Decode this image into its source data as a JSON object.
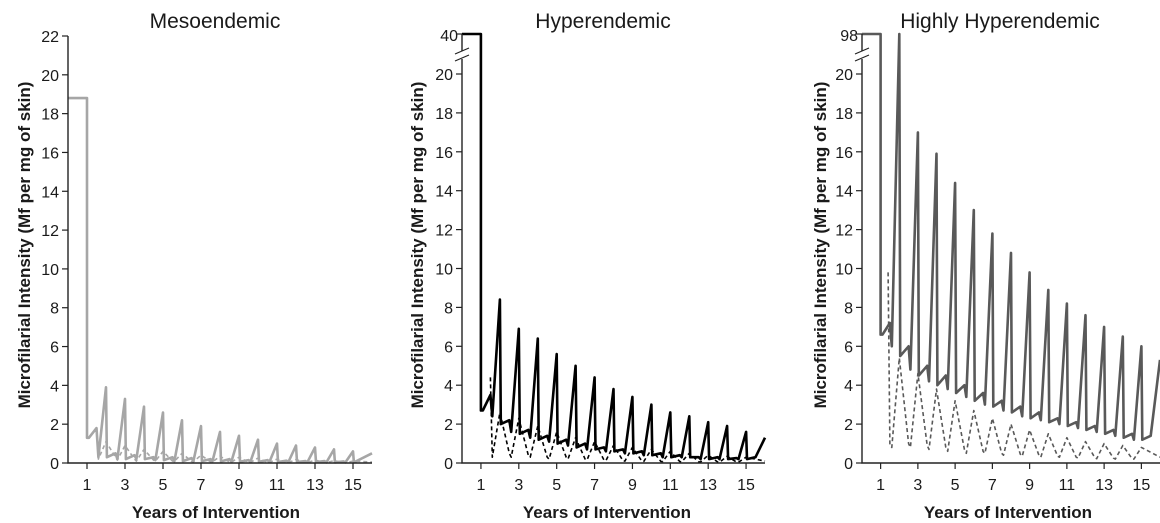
{
  "chart_data": [
    {
      "type": "line",
      "title": "Mesoendemic",
      "xlabel": "Years of Intervention",
      "ylabel": "Microfilarial Intensity (Mf per mg of skin)",
      "xlim": [
        0,
        16
      ],
      "ylim": [
        0,
        22
      ],
      "x_ticks": [
        1,
        3,
        5,
        7,
        9,
        11,
        13,
        15
      ],
      "y_ticks": [
        0,
        2,
        4,
        6,
        8,
        10,
        12,
        14,
        16,
        18,
        20,
        22
      ],
      "axis_break": false,
      "grid": false,
      "legend": "none",
      "pre_intervention_level": 18.8,
      "color": "#a6a6a6",
      "series": [
        {
          "style": "solid",
          "x": [
            0,
            1,
            1,
            1.1,
            1.5,
            1.6,
            2,
            2.05,
            2.5,
            2.6,
            3,
            3.05,
            3.5,
            3.6,
            4,
            4.05,
            4.5,
            4.6,
            5,
            5.05,
            5.5,
            5.6,
            6,
            6.05,
            6.5,
            6.6,
            7,
            7.05,
            7.5,
            7.6,
            8,
            8.05,
            8.5,
            8.6,
            9,
            9.05,
            9.5,
            9.6,
            10,
            10.05,
            10.5,
            10.6,
            11,
            11.05,
            11.5,
            11.6,
            12,
            12.05,
            12.5,
            12.6,
            13,
            13.05,
            13.5,
            13.6,
            14,
            14.05,
            14.5,
            14.6,
            15,
            15.05,
            16
          ],
          "y": [
            18.8,
            18.8,
            1.3,
            1.3,
            1.8,
            0.3,
            3.9,
            0.3,
            0.5,
            0.2,
            3.3,
            0.2,
            0.4,
            0.2,
            2.9,
            0.2,
            0.3,
            0.15,
            2.6,
            0.15,
            0.3,
            0.1,
            2.2,
            0.1,
            0.25,
            0.1,
            1.9,
            0.1,
            0.2,
            0.08,
            1.6,
            0.08,
            0.2,
            0.07,
            1.4,
            0.07,
            0.15,
            0.06,
            1.2,
            0.06,
            0.15,
            0.05,
            1.0,
            0.05,
            0.12,
            0.05,
            0.9,
            0.05,
            0.1,
            0.04,
            0.8,
            0.04,
            0.1,
            0.03,
            0.7,
            0.03,
            0.08,
            0.03,
            0.6,
            0.03,
            0.5
          ]
        },
        {
          "style": "dashed",
          "x": [
            1.5,
            1.6,
            2,
            2.5,
            2.6,
            3,
            3.5,
            3.6,
            4,
            4.5,
            4.6,
            5,
            5.5,
            5.6,
            6,
            6.5,
            6.6,
            7,
            7.5,
            7.6,
            8,
            8.5,
            8.6,
            9,
            9.5,
            9.6,
            10,
            10.5,
            10.6,
            11,
            11.5,
            11.6,
            12,
            12.5,
            12.6,
            13,
            13.5,
            13.6,
            14,
            14.5,
            14.6,
            15,
            16
          ],
          "y": [
            1.8,
            0.2,
            1.1,
            0.3,
            0.15,
            0.9,
            0.2,
            0.1,
            0.7,
            0.15,
            0.1,
            0.6,
            0.1,
            0.08,
            0.5,
            0.08,
            0.06,
            0.4,
            0.06,
            0.05,
            0.35,
            0.05,
            0.04,
            0.3,
            0.04,
            0.03,
            0.25,
            0.03,
            0.03,
            0.2,
            0.03,
            0.02,
            0.18,
            0.02,
            0.02,
            0.15,
            0.02,
            0.02,
            0.12,
            0.02,
            0.01,
            0.1,
            0.05
          ]
        }
      ]
    },
    {
      "type": "line",
      "title": "Hyperendemic",
      "xlabel": "Years of Intervention",
      "ylabel": "Microfilarial Intensity (Mf per mg of skin)",
      "xlim": [
        0,
        16
      ],
      "ylim": [
        0,
        20
      ],
      "x_ticks": [
        1,
        3,
        5,
        7,
        9,
        11,
        13,
        15
      ],
      "y_ticks": [
        0,
        2,
        4,
        6,
        8,
        10,
        12,
        14,
        16,
        18,
        20
      ],
      "axis_break": true,
      "break_top_label": "40",
      "grid": false,
      "legend": "none",
      "pre_intervention_level": 40,
      "color": "#000000",
      "series": [
        {
          "style": "solid",
          "x": [
            0,
            1,
            1,
            1.1,
            1.5,
            1.6,
            2,
            2.05,
            2.5,
            2.6,
            3,
            3.05,
            3.5,
            3.6,
            4,
            4.05,
            4.5,
            4.6,
            5,
            5.05,
            5.5,
            5.6,
            6,
            6.05,
            6.5,
            6.6,
            7,
            7.05,
            7.5,
            7.6,
            8,
            8.05,
            8.5,
            8.6,
            9,
            9.05,
            9.5,
            9.6,
            10,
            10.05,
            10.5,
            10.6,
            11,
            11.05,
            11.5,
            11.6,
            12,
            12.05,
            12.5,
            12.6,
            13,
            13.05,
            13.5,
            13.6,
            14,
            14.05,
            14.5,
            14.6,
            15,
            15.05,
            15.5,
            16
          ],
          "y": [
            40,
            40,
            2.7,
            2.7,
            3.5,
            2.4,
            8.4,
            2.0,
            2.2,
            1.6,
            6.9,
            1.5,
            1.7,
            1.3,
            6.4,
            1.2,
            1.4,
            1.1,
            5.6,
            1.0,
            1.2,
            0.9,
            5.0,
            0.8,
            1.0,
            0.7,
            4.4,
            0.7,
            0.8,
            0.6,
            3.8,
            0.6,
            0.7,
            0.5,
            3.4,
            0.5,
            0.6,
            0.4,
            3.0,
            0.4,
            0.5,
            0.3,
            2.6,
            0.3,
            0.4,
            0.3,
            2.4,
            0.3,
            0.3,
            0.2,
            2.1,
            0.2,
            0.3,
            0.2,
            1.9,
            0.2,
            0.25,
            0.2,
            1.6,
            0.2,
            0.3,
            1.3
          ]
        },
        {
          "style": "dashed",
          "x": [
            1.5,
            1.6,
            2,
            2.5,
            2.6,
            3,
            3.5,
            3.6,
            4,
            4.5,
            4.6,
            5,
            5.5,
            5.6,
            6,
            6.5,
            6.6,
            7,
            7.5,
            7.6,
            8,
            8.5,
            8.6,
            9,
            9.5,
            9.6,
            10,
            10.5,
            10.6,
            11,
            11.5,
            11.6,
            12,
            12.5,
            12.6,
            13,
            13.5,
            13.6,
            14,
            14.5,
            14.6,
            15,
            16
          ],
          "y": [
            4.4,
            0.3,
            2.6,
            0.5,
            0.3,
            2.3,
            0.4,
            0.3,
            1.9,
            0.3,
            0.2,
            1.6,
            0.3,
            0.2,
            1.3,
            0.2,
            0.15,
            1.1,
            0.15,
            0.12,
            0.9,
            0.12,
            0.1,
            0.8,
            0.1,
            0.08,
            0.7,
            0.08,
            0.07,
            0.6,
            0.07,
            0.06,
            0.5,
            0.06,
            0.05,
            0.4,
            0.05,
            0.04,
            0.35,
            0.04,
            0.04,
            0.3,
            0.1
          ]
        }
      ]
    },
    {
      "type": "line",
      "title": "Highly Hyperendemic",
      "xlabel": "Years of Intervention",
      "ylabel": "Microfilarial Intensity (Mf per mg of skin)",
      "xlim": [
        0,
        16
      ],
      "ylim": [
        0,
        20
      ],
      "x_ticks": [
        1,
        3,
        5,
        7,
        9,
        11,
        13,
        15
      ],
      "y_ticks": [
        0,
        2,
        4,
        6,
        8,
        10,
        12,
        14,
        16,
        18,
        20
      ],
      "axis_break": true,
      "break_top_label": "98",
      "grid": false,
      "legend": "none",
      "pre_intervention_level": 98,
      "color": "#595959",
      "series": [
        {
          "style": "solid",
          "x": [
            0,
            1,
            1,
            1.1,
            1.5,
            1.6,
            2,
            2.05,
            2.5,
            2.6,
            3,
            3.05,
            3.5,
            3.6,
            4,
            4.05,
            4.5,
            4.6,
            5,
            5.05,
            5.5,
            5.6,
            6,
            6.05,
            6.5,
            6.6,
            7,
            7.05,
            7.5,
            7.6,
            8,
            8.05,
            8.5,
            8.6,
            9,
            9.05,
            9.5,
            9.6,
            10,
            10.05,
            10.5,
            10.6,
            11,
            11.05,
            11.5,
            11.6,
            12,
            12.05,
            12.5,
            12.6,
            13,
            13.05,
            13.5,
            13.6,
            14,
            14.05,
            14.5,
            14.6,
            15,
            15.05,
            15.5,
            16
          ],
          "y": [
            98,
            98,
            6.6,
            6.6,
            7.2,
            6.0,
            20.6,
            5.5,
            6.0,
            4.8,
            17.0,
            4.5,
            5.0,
            4.2,
            15.9,
            4.0,
            4.5,
            3.8,
            14.4,
            3.6,
            4.0,
            3.4,
            13.0,
            3.2,
            3.6,
            3.0,
            11.8,
            2.9,
            3.2,
            2.7,
            10.8,
            2.6,
            2.9,
            2.4,
            9.8,
            2.3,
            2.6,
            2.2,
            8.9,
            2.1,
            2.3,
            2.0,
            8.2,
            1.9,
            2.1,
            1.8,
            7.6,
            1.7,
            1.9,
            1.6,
            7.0,
            1.5,
            1.7,
            1.4,
            6.5,
            1.3,
            1.5,
            1.2,
            6.0,
            1.2,
            1.4,
            5.3
          ]
        },
        {
          "style": "dashed",
          "x": [
            1.4,
            1.5,
            1.6,
            2,
            2.5,
            2.6,
            3,
            3.5,
            3.6,
            4,
            4.5,
            4.6,
            5,
            5.5,
            5.6,
            6,
            6.5,
            6.6,
            7,
            7.5,
            7.6,
            8,
            8.5,
            8.6,
            9,
            9.5,
            9.6,
            10,
            10.5,
            10.6,
            11,
            11.5,
            11.6,
            12,
            12.5,
            12.6,
            13,
            13.5,
            13.6,
            14,
            14.5,
            14.6,
            15,
            16
          ],
          "y": [
            9.8,
            0.9,
            0.8,
            5.4,
            1.0,
            0.8,
            4.6,
            0.9,
            0.7,
            3.8,
            0.8,
            0.6,
            3.2,
            0.7,
            0.5,
            2.7,
            0.6,
            0.5,
            2.3,
            0.5,
            0.4,
            2.0,
            0.45,
            0.35,
            1.7,
            0.4,
            0.3,
            1.5,
            0.35,
            0.3,
            1.3,
            0.3,
            0.25,
            1.1,
            0.28,
            0.22,
            1.0,
            0.25,
            0.2,
            0.9,
            0.22,
            0.2,
            0.8,
            0.3
          ]
        }
      ]
    }
  ]
}
